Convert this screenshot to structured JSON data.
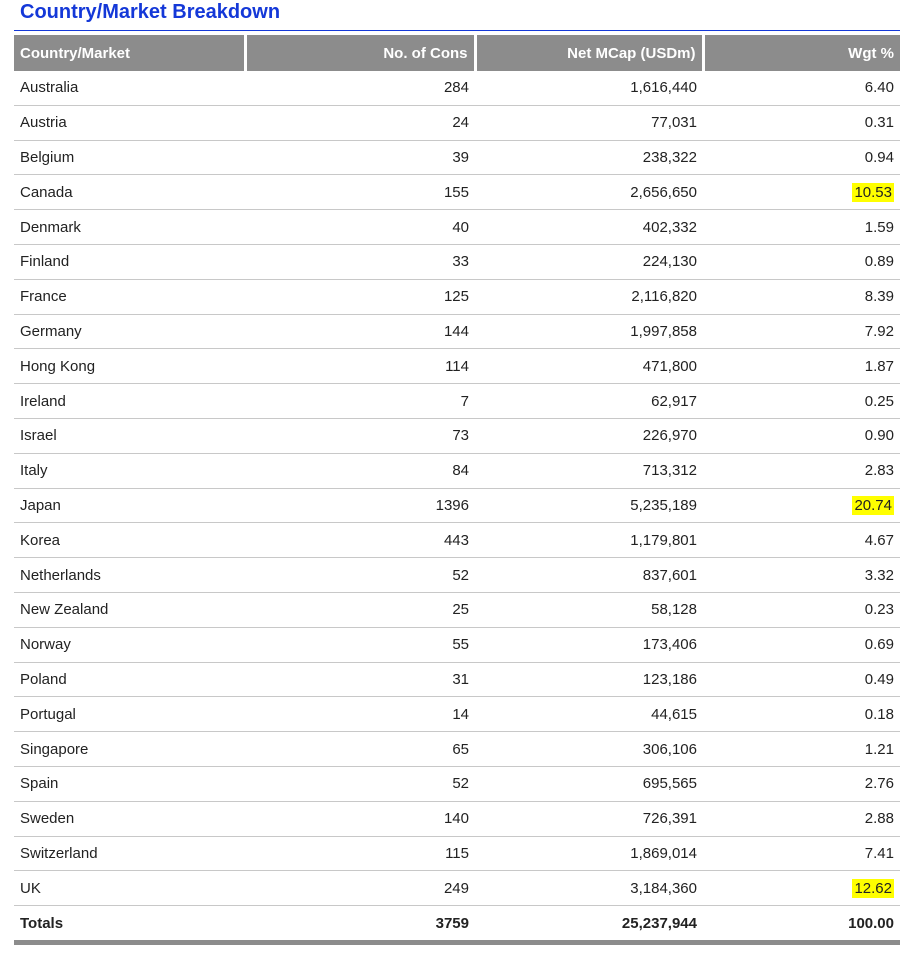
{
  "title": "Country/Market Breakdown",
  "header": [
    "Country/Market",
    "No. of Cons",
    "Net MCap (USDm)",
    "Wgt %"
  ],
  "rows": [
    {
      "cells": [
        "Australia",
        "284",
        "1,616,440",
        "6.40"
      ]
    },
    {
      "cells": [
        "Austria",
        "24",
        "77,031",
        "0.31"
      ]
    },
    {
      "cells": [
        "Belgium",
        "39",
        "238,322",
        "0.94"
      ]
    },
    {
      "cells": [
        "Canada",
        "155",
        "2,656,650",
        "10.53"
      ],
      "highlight": true
    },
    {
      "cells": [
        "Denmark",
        "40",
        "402,332",
        "1.59"
      ]
    },
    {
      "cells": [
        "Finland",
        "33",
        "224,130",
        "0.89"
      ]
    },
    {
      "cells": [
        "France",
        "125",
        "2,116,820",
        "8.39"
      ]
    },
    {
      "cells": [
        "Germany",
        "144",
        "1,997,858",
        "7.92"
      ]
    },
    {
      "cells": [
        "Hong Kong",
        "114",
        "471,800",
        "1.87"
      ]
    },
    {
      "cells": [
        "Ireland",
        "7",
        "62,917",
        "0.25"
      ]
    },
    {
      "cells": [
        "Israel",
        "73",
        "226,970",
        "0.90"
      ]
    },
    {
      "cells": [
        "Italy",
        "84",
        "713,312",
        "2.83"
      ]
    },
    {
      "cells": [
        "Japan",
        "1396",
        "5,235,189",
        "20.74"
      ],
      "highlight": true
    },
    {
      "cells": [
        "Korea",
        "443",
        "1,179,801",
        "4.67"
      ]
    },
    {
      "cells": [
        "Netherlands",
        "52",
        "837,601",
        "3.32"
      ]
    },
    {
      "cells": [
        "New Zealand",
        "25",
        "58,128",
        "0.23"
      ]
    },
    {
      "cells": [
        "Norway",
        "55",
        "173,406",
        "0.69"
      ]
    },
    {
      "cells": [
        "Poland",
        "31",
        "123,186",
        "0.49"
      ]
    },
    {
      "cells": [
        "Portugal",
        "14",
        "44,615",
        "0.18"
      ]
    },
    {
      "cells": [
        "Singapore",
        "65",
        "306,106",
        "1.21"
      ]
    },
    {
      "cells": [
        "Spain",
        "52",
        "695,565",
        "2.76"
      ]
    },
    {
      "cells": [
        "Sweden",
        "140",
        "726,391",
        "2.88"
      ]
    },
    {
      "cells": [
        "Switzerland",
        "115",
        "1,869,014",
        "7.41"
      ]
    },
    {
      "cells": [
        "UK",
        "249",
        "3,184,360",
        "12.62"
      ],
      "highlight": true
    }
  ],
  "totals": [
    "Totals",
    "3759",
    "25,237,944",
    "100.00"
  ]
}
